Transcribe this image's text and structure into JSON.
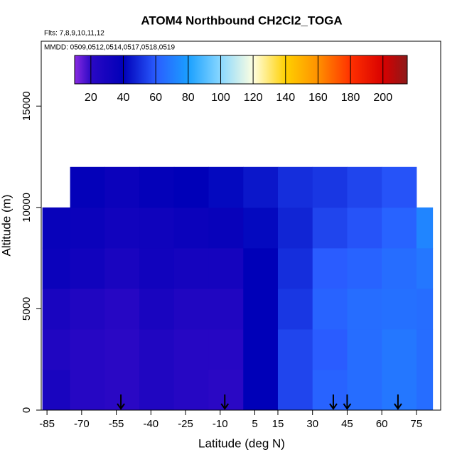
{
  "chart_data": {
    "type": "heatmap",
    "title": "ATOM4 Northbound CH2Cl2_TOGA",
    "subtitle": "Flts: 7,8,9,10,11,12",
    "annotation": "MMDD: 0509,0512,0514,0517,0518,0519",
    "x_label": "Latitude (deg N)",
    "y_label": "Altitude (m)",
    "xlim": [
      -87.5,
      85.5
    ],
    "ylim": [
      0,
      18200
    ],
    "xticks": [
      -85,
      -70,
      -55,
      -40,
      -25,
      -10,
      5,
      15,
      30,
      45,
      60,
      75
    ],
    "yticks": [
      0,
      5000,
      10000,
      15000
    ],
    "lat_bins": [
      -87,
      -75,
      -60,
      -45,
      -30,
      -15,
      0,
      15,
      30,
      45,
      60,
      75,
      82
    ],
    "alt_bins": [
      0,
      2000,
      4000,
      6000,
      8000,
      10000,
      12000
    ],
    "values": [
      [
        28,
        22,
        20,
        25,
        22,
        20,
        40,
        55,
        62,
        65,
        68,
        65
      ],
      [
        25,
        22,
        20,
        25,
        22,
        22,
        40,
        55,
        60,
        65,
        68,
        65
      ],
      [
        28,
        25,
        22,
        28,
        25,
        25,
        40,
        52,
        62,
        65,
        66,
        65
      ],
      [
        35,
        32,
        28,
        32,
        30,
        30,
        40,
        50,
        60,
        62,
        65,
        68
      ],
      [
        36,
        35,
        32,
        33,
        35,
        36,
        42,
        48,
        55,
        58,
        62,
        72
      ],
      [
        null,
        38,
        35,
        38,
        40,
        42,
        45,
        50,
        52,
        55,
        58,
        null
      ]
    ],
    "colorbar": {
      "lim": [
        10,
        215
      ],
      "ticks": [
        20,
        40,
        60,
        80,
        100,
        120,
        140,
        160,
        180,
        200
      ],
      "colors": [
        "#8a2be2",
        "#2a08c4",
        "#0000b8",
        "#2a5cff",
        "#1aa0ff",
        "#8ad8ff",
        "#ffffe0",
        "#ffd000",
        "#ff9000",
        "#ff3000",
        "#d80000",
        "#8b1a1a"
      ]
    },
    "arrows_lat": [
      -53,
      -8,
      39,
      45,
      67
    ]
  }
}
